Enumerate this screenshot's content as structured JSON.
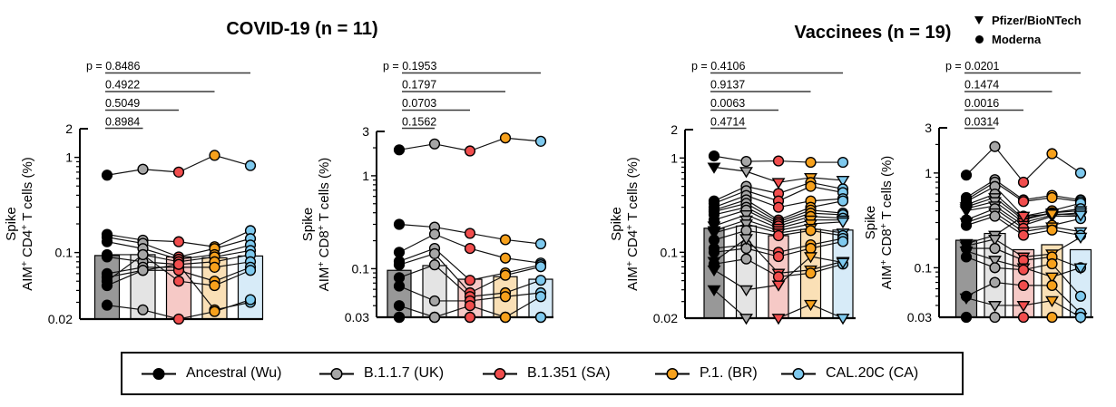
{
  "header": {
    "group_titles": [
      {
        "label": "COVID-19 (n = 11)"
      },
      {
        "label": "Vaccinees (n = 19)"
      }
    ],
    "vaccine_legend": [
      {
        "marker": "triangle-down",
        "label": "Pfizer/BioNTech"
      },
      {
        "marker": "circle",
        "label": "Moderna"
      }
    ]
  },
  "variant_legend": [
    {
      "label": "Ancestral (Wu)",
      "color": "#000000"
    },
    {
      "label": "B.1.1.7 (UK)",
      "color": "#A6A6A6"
    },
    {
      "label": "B.1.351 (SA)",
      "color": "#F14D4D"
    },
    {
      "label": "P.1. (BR)",
      "color": "#F7A11C"
    },
    {
      "label": "CAL.20C (CA)",
      "color": "#7EC9EE"
    }
  ],
  "colors": {
    "point_fills": [
      "#000000",
      "#A6A6A6",
      "#F14D4D",
      "#F7A11C",
      "#7EC9EE"
    ],
    "bar_fills": [
      "#989898",
      "#E4E4E4",
      "#F6C9C6",
      "#FAE0B6",
      "#D7EBF8"
    ],
    "line": "#111111",
    "axis": "#000000",
    "p_line": "#3a3a3a"
  },
  "p_label_prefix": "p = ",
  "chart_data": [
    {
      "type": "scatter",
      "group": "COVID-19",
      "n": 11,
      "ylabel_line1": "Spike",
      "ylabel_line2": "AIM^+ CD4^+ T cells (%)",
      "ylim": [
        0.02,
        2
      ],
      "log": true,
      "yticks": [
        {
          "v": 2,
          "label": "2"
        },
        {
          "v": 1,
          "label": "1"
        },
        {
          "v": 0.1,
          "label": "0.1"
        },
        {
          "v": 0.02,
          "label": "0.02"
        }
      ],
      "categories": [
        "Ancestral (Wu)",
        "B.1.1.7 (UK)",
        "B.1.351 (SA)",
        "P.1. (BR)",
        "CAL.20C (CA)"
      ],
      "p_values": [
        "0.8486",
        "0.4922",
        "0.5049",
        "0.8984"
      ],
      "p_comparisons": [
        [
          1,
          5
        ],
        [
          1,
          4
        ],
        [
          1,
          3
        ],
        [
          1,
          2
        ]
      ],
      "bar_means": [
        0.093,
        0.095,
        0.09,
        0.088,
        0.092
      ],
      "subjects": [
        {
          "marker": "circle",
          "values": [
            0.65,
            0.75,
            0.7,
            1.05,
            0.82
          ]
        },
        {
          "marker": "circle",
          "values": [
            0.155,
            0.135,
            0.13,
            0.115,
            0.17
          ]
        },
        {
          "marker": "circle",
          "values": [
            0.145,
            0.125,
            0.09,
            0.11,
            0.14
          ]
        },
        {
          "marker": "circle",
          "values": [
            0.13,
            0.11,
            0.085,
            0.095,
            0.12
          ]
        },
        {
          "marker": "circle",
          "values": [
            0.095,
            0.095,
            0.08,
            0.09,
            0.105
          ]
        },
        {
          "marker": "circle",
          "values": [
            0.09,
            0.08,
            0.075,
            0.08,
            0.095
          ]
        },
        {
          "marker": "circle",
          "values": [
            0.06,
            0.07,
            0.07,
            0.07,
            0.08
          ]
        },
        {
          "marker": "circle",
          "values": [
            0.055,
            0.065,
            0.065,
            0.05,
            0.07
          ]
        },
        {
          "marker": "circle",
          "values": [
            0.05,
            0.095,
            0.05,
            0.045,
            0.065
          ]
        },
        {
          "marker": "circle",
          "values": [
            0.045,
            0.065,
            0.075,
            0.025,
            0.03
          ]
        },
        {
          "marker": "circle",
          "values": [
            0.028,
            0.025,
            0.02,
            0.024,
            0.032
          ]
        }
      ]
    },
    {
      "type": "scatter",
      "group": "COVID-19",
      "n": 11,
      "ylabel_line1": "Spike",
      "ylabel_line2": "AIM^+ CD8^+ T cells (%)",
      "ylim": [
        0.03,
        3
      ],
      "log": true,
      "yticks": [
        {
          "v": 3,
          "label": "3"
        },
        {
          "v": 1,
          "label": "1"
        },
        {
          "v": 0.1,
          "label": "0.1"
        },
        {
          "v": 0.03,
          "label": "0.03"
        }
      ],
      "categories": [
        "Ancestral (Wu)",
        "B.1.1.7 (UK)",
        "B.1.351 (SA)",
        "P.1. (BR)",
        "CAL.20C (CA)"
      ],
      "p_values": [
        "0.1953",
        "0.1797",
        "0.0703",
        "0.1562"
      ],
      "p_comparisons": [
        [
          1,
          5
        ],
        [
          1,
          4
        ],
        [
          1,
          3
        ],
        [
          1,
          2
        ]
      ],
      "bar_means": [
        0.096,
        0.108,
        0.077,
        0.082,
        0.077
      ],
      "subjects": [
        {
          "marker": "circle",
          "values": [
            1.9,
            2.2,
            1.85,
            2.55,
            2.35
          ]
        },
        {
          "marker": "circle",
          "values": [
            0.3,
            0.28,
            0.24,
            0.205,
            0.185
          ]
        },
        {
          "marker": "circle",
          "values": [
            0.15,
            0.235,
            0.165,
            0.13,
            0.115
          ]
        },
        {
          "marker": "circle",
          "values": [
            0.12,
            0.165,
            0.075,
            0.09,
            0.11
          ]
        },
        {
          "marker": "circle",
          "values": [
            0.11,
            0.145,
            0.055,
            0.085,
            0.105
          ]
        },
        {
          "marker": "circle",
          "values": [
            0.08,
            0.11,
            0.05,
            0.055,
            0.075
          ]
        },
        {
          "marker": "circle",
          "values": [
            0.065,
            0.045,
            0.045,
            0.05,
            0.055
          ]
        },
        {
          "marker": "circle",
          "values": [
            0.04,
            0.03,
            0.04,
            0.03,
            0.05
          ]
        },
        {
          "marker": "circle",
          "values": [
            0.03,
            0.03,
            0.03,
            0.03,
            0.03
          ]
        },
        {
          "marker": "circle",
          "values": [
            0.03,
            0.03,
            0.03,
            0.03,
            0.03
          ]
        },
        {
          "marker": "circle",
          "values": [
            0.03,
            0.03,
            0.03,
            0.03,
            0.03
          ]
        }
      ]
    },
    {
      "type": "scatter",
      "group": "Vaccinees",
      "n": 19,
      "ylabel_line1": "Spike",
      "ylabel_line2": "AIM^+ CD4^+ T cells (%)",
      "ylim": [
        0.02,
        2
      ],
      "log": true,
      "yticks": [
        {
          "v": 2,
          "label": "2"
        },
        {
          "v": 1,
          "label": "1"
        },
        {
          "v": 0.1,
          "label": "0.1"
        },
        {
          "v": 0.02,
          "label": "0.02"
        }
      ],
      "categories": [
        "Ancestral (Wu)",
        "B.1.1.7 (UK)",
        "B.1.351 (SA)",
        "P.1. (BR)",
        "CAL.20C (CA)"
      ],
      "p_values": [
        "0.4106",
        "0.9137",
        "0.0063",
        "0.4714"
      ],
      "p_comparisons": [
        [
          1,
          5
        ],
        [
          1,
          4
        ],
        [
          1,
          3
        ],
        [
          1,
          2
        ]
      ],
      "bar_means": [
        0.18,
        0.19,
        0.15,
        0.175,
        0.172
      ],
      "subjects": [
        {
          "marker": "circle",
          "values": [
            1.05,
            0.92,
            0.93,
            0.9,
            0.9
          ]
        },
        {
          "marker": "triangle",
          "values": [
            0.8,
            0.72,
            0.55,
            0.62,
            0.58
          ]
        },
        {
          "marker": "circle",
          "values": [
            0.35,
            0.5,
            0.42,
            0.55,
            0.47
          ]
        },
        {
          "marker": "circle",
          "values": [
            0.33,
            0.45,
            0.35,
            0.5,
            0.43
          ]
        },
        {
          "marker": "circle",
          "values": [
            0.3,
            0.4,
            0.3,
            0.35,
            0.37
          ]
        },
        {
          "marker": "circle",
          "values": [
            0.28,
            0.36,
            0.22,
            0.3,
            0.35
          ]
        },
        {
          "marker": "circle",
          "values": [
            0.27,
            0.33,
            0.21,
            0.28,
            0.26
          ]
        },
        {
          "marker": "circle",
          "values": [
            0.25,
            0.3,
            0.2,
            0.26,
            0.25
          ]
        },
        {
          "marker": "circle",
          "values": [
            0.22,
            0.28,
            0.19,
            0.24,
            0.23
          ]
        },
        {
          "marker": "triangle",
          "values": [
            0.19,
            0.25,
            0.18,
            0.22,
            0.22
          ]
        },
        {
          "marker": "triangle",
          "values": [
            0.17,
            0.22,
            0.17,
            0.2,
            0.21
          ]
        },
        {
          "marker": "triangle",
          "values": [
            0.16,
            0.2,
            0.16,
            0.18,
            0.16
          ]
        },
        {
          "marker": "circle",
          "values": [
            0.135,
            0.17,
            0.15,
            0.17,
            0.15
          ]
        },
        {
          "marker": "circle",
          "values": [
            0.11,
            0.12,
            0.1,
            0.12,
            0.14
          ]
        },
        {
          "marker": "circle",
          "values": [
            0.1,
            0.11,
            0.09,
            0.11,
            0.13
          ]
        },
        {
          "marker": "triangle",
          "values": [
            0.08,
            0.14,
            0.06,
            0.065,
            0.08
          ]
        },
        {
          "marker": "circle",
          "values": [
            0.075,
            0.085,
            0.055,
            0.06,
            0.075
          ]
        },
        {
          "marker": "triangle",
          "values": [
            0.065,
            0.04,
            0.045,
            0.09,
            0.078
          ]
        },
        {
          "marker": "triangle",
          "values": [
            0.04,
            0.02,
            0.02,
            0.028,
            0.02
          ]
        }
      ]
    },
    {
      "type": "scatter",
      "group": "Vaccinees",
      "n": 19,
      "ylabel_line1": "Spike",
      "ylabel_line2": "AIM^+ CD8^+ T cells (%)",
      "ylim": [
        0.03,
        3
      ],
      "log": true,
      "yticks": [
        {
          "v": 3,
          "label": "3"
        },
        {
          "v": 1,
          "label": "1"
        },
        {
          "v": 0.1,
          "label": "0.1"
        },
        {
          "v": 0.03,
          "label": "0.03"
        }
      ],
      "categories": [
        "Ancestral (Wu)",
        "B.1.1.7 (UK)",
        "B.1.351 (SA)",
        "P.1. (BR)",
        "CAL.20C (CA)"
      ],
      "p_values": [
        "0.0201",
        "0.1474",
        "0.0016",
        "0.0314"
      ],
      "p_comparisons": [
        [
          1,
          5
        ],
        [
          1,
          4
        ],
        [
          1,
          3
        ],
        [
          1,
          2
        ]
      ],
      "bar_means": [
        0.195,
        0.23,
        0.155,
        0.175,
        0.155
      ],
      "subjects": [
        {
          "marker": "circle",
          "values": [
            0.95,
            1.9,
            0.8,
            1.6,
            1.0
          ]
        },
        {
          "marker": "circle",
          "values": [
            0.55,
            0.85,
            0.52,
            0.58,
            0.52
          ]
        },
        {
          "marker": "circle",
          "values": [
            0.52,
            0.8,
            0.5,
            0.55,
            0.5
          ]
        },
        {
          "marker": "circle",
          "values": [
            0.5,
            0.72,
            0.35,
            0.4,
            0.48
          ]
        },
        {
          "marker": "circle",
          "values": [
            0.46,
            0.6,
            0.33,
            0.38,
            0.42
          ]
        },
        {
          "marker": "triangle",
          "values": [
            0.44,
            0.55,
            0.32,
            0.38,
            0.4
          ]
        },
        {
          "marker": "triangle",
          "values": [
            0.42,
            0.5,
            0.3,
            0.36,
            0.38
          ]
        },
        {
          "marker": "triangle",
          "values": [
            0.4,
            0.45,
            0.28,
            0.35,
            0.35
          ]
        },
        {
          "marker": "circle",
          "values": [
            0.32,
            0.42,
            0.26,
            0.28,
            0.33
          ]
        },
        {
          "marker": "triangle",
          "values": [
            0.3,
            0.38,
            0.24,
            0.27,
            0.24
          ]
        },
        {
          "marker": "circle",
          "values": [
            0.28,
            0.35,
            0.22,
            0.25,
            0.22
          ]
        },
        {
          "marker": "triangle",
          "values": [
            0.18,
            0.22,
            0.35,
            0.37,
            0.36
          ]
        },
        {
          "marker": "triangle",
          "values": [
            0.17,
            0.2,
            0.13,
            0.14,
            0.21
          ]
        },
        {
          "marker": "circle",
          "values": [
            0.16,
            0.16,
            0.12,
            0.13,
            0.1
          ]
        },
        {
          "marker": "triangle",
          "values": [
            0.15,
            0.12,
            0.1,
            0.08,
            0.1
          ]
        },
        {
          "marker": "circle",
          "values": [
            0.13,
            0.1,
            0.095,
            0.11,
            0.05
          ]
        },
        {
          "marker": "circle",
          "values": [
            0.05,
            0.07,
            0.065,
            0.065,
            0.033
          ]
        },
        {
          "marker": "triangle",
          "values": [
            0.048,
            0.04,
            0.04,
            0.045,
            0.03
          ]
        },
        {
          "marker": "circle",
          "values": [
            0.03,
            0.03,
            0.03,
            0.03,
            0.03
          ]
        }
      ]
    }
  ]
}
